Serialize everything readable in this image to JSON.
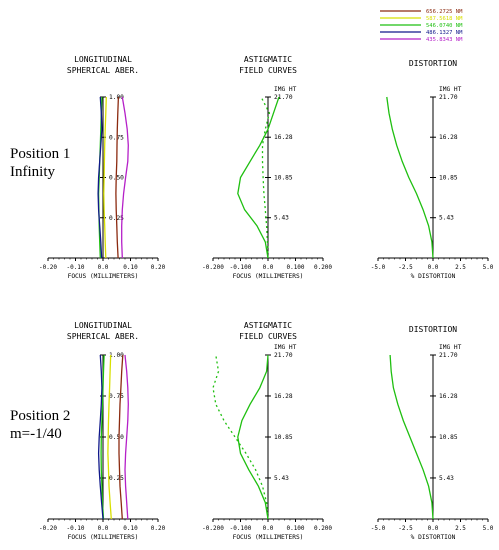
{
  "legend": [
    {
      "label": "656.2725 NM",
      "color": "#8b2a10"
    },
    {
      "label": "587.5618 NM",
      "color": "#d8e000"
    },
    {
      "label": "546.0740 NM",
      "color": "#1fbf10"
    },
    {
      "label": "486.1327 NM",
      "color": "#10188a"
    },
    {
      "label": "435.8343 NM",
      "color": "#b520c8"
    }
  ],
  "rows": [
    {
      "label_line1": "Position 1",
      "label_line2": "Infinity"
    },
    {
      "label_line1": "Position 2",
      "label_line2": "m=-1/40"
    }
  ],
  "chart_data": [
    {
      "type": "line",
      "title": "LONGITUDINAL SPHERICAL ABER.",
      "xlabel": "FOCUS (MILLIMETERS)",
      "xlim": [
        -0.2,
        0.2
      ],
      "ylim": [
        0,
        1
      ],
      "xticks": [
        "-0.20",
        "-0.10",
        "0.0",
        "0.10",
        "0.20"
      ],
      "yticks": [
        "1.00",
        "0.75",
        "0.50",
        "0.25"
      ],
      "yticks_values": [
        1.0,
        0.75,
        0.5,
        0.25
      ],
      "series": [
        {
          "name": "656.2725 NM",
          "color": "#8b2a10",
          "x": [
            0.055,
            0.052,
            0.05,
            0.048,
            0.047,
            0.048,
            0.05,
            0.051,
            0.052,
            0.054,
            0.056
          ],
          "y": [
            0,
            0.1,
            0.2,
            0.3,
            0.4,
            0.5,
            0.6,
            0.7,
            0.8,
            0.9,
            1.0
          ]
        },
        {
          "name": "587.5618 NM",
          "color": "#d8e000",
          "x": [
            0.01,
            0.008,
            0.006,
            0.004,
            0.003,
            0.004,
            0.005,
            0.006,
            0.008,
            0.01,
            0.012
          ],
          "y": [
            0,
            0.1,
            0.2,
            0.3,
            0.4,
            0.5,
            0.6,
            0.7,
            0.8,
            0.9,
            1.0
          ]
        },
        {
          "name": "546.0740 NM",
          "color": "#1fbf10",
          "x": [
            -0.01,
            -0.012,
            -0.014,
            -0.015,
            -0.016,
            -0.014,
            -0.012,
            -0.01,
            -0.008,
            -0.006,
            -0.004
          ],
          "y": [
            0,
            0.1,
            0.2,
            0.3,
            0.4,
            0.5,
            0.6,
            0.7,
            0.8,
            0.9,
            1.0
          ]
        },
        {
          "name": "486.1327 NM",
          "color": "#10188a",
          "x": [
            -0.005,
            -0.008,
            -0.012,
            -0.016,
            -0.018,
            -0.016,
            -0.012,
            -0.008,
            -0.004,
            -0.006,
            -0.01
          ],
          "y": [
            0,
            0.1,
            0.2,
            0.3,
            0.4,
            0.5,
            0.6,
            0.7,
            0.8,
            0.9,
            1.0
          ]
        },
        {
          "name": "435.8343 NM",
          "color": "#b520c8",
          "x": [
            0.07,
            0.068,
            0.068,
            0.07,
            0.075,
            0.082,
            0.09,
            0.092,
            0.088,
            0.08,
            0.07
          ],
          "y": [
            0,
            0.1,
            0.2,
            0.3,
            0.4,
            0.5,
            0.6,
            0.7,
            0.8,
            0.9,
            1.0
          ]
        }
      ]
    },
    {
      "type": "line",
      "title": "ASTIGMATIC FIELD CURVES",
      "ytitle": "IMG HT",
      "xlabel": "FOCUS (MILLIMETERS)",
      "xlim": [
        -0.2,
        0.2
      ],
      "ylim": [
        0,
        21.7
      ],
      "xticks": [
        "-0.200",
        "-0.100",
        "0.0",
        "0.100",
        "0.200"
      ],
      "yticks": [
        "21.70",
        "16.28",
        "10.85",
        "5.43"
      ],
      "yticks_values": [
        21.7,
        16.28,
        10.85,
        5.43
      ],
      "series": [
        {
          "color": "#1fbf10",
          "dash": false,
          "x": [
            0,
            -0.01,
            -0.04,
            -0.085,
            -0.11,
            -0.1,
            -0.065,
            -0.03,
            0,
            0.02,
            0.04
          ],
          "y": [
            0,
            2.17,
            4.34,
            6.51,
            8.68,
            10.85,
            13.02,
            15.19,
            17.36,
            19.53,
            21.7
          ]
        },
        {
          "color": "#1fbf10",
          "dash": true,
          "x": [
            0,
            -0.002,
            -0.005,
            -0.01,
            -0.015,
            -0.018,
            -0.02,
            -0.02,
            -0.01,
            0.005,
            -0.025
          ],
          "y": [
            0,
            2.17,
            4.34,
            6.51,
            8.68,
            10.85,
            13.02,
            15.19,
            17.36,
            19.53,
            21.7
          ]
        }
      ]
    },
    {
      "type": "line",
      "title": "DISTORTION",
      "ytitle": "IMG HT",
      "xlabel": "% DISTORTION",
      "xlim": [
        -5,
        5
      ],
      "ylim": [
        0,
        21.7
      ],
      "xticks": [
        "-5.0",
        "-2.5",
        "0.0",
        "2.5",
        "5.0"
      ],
      "yticks": [
        "21.70",
        "16.28",
        "10.85",
        "5.43"
      ],
      "yticks_values": [
        21.7,
        16.28,
        10.85,
        5.43
      ],
      "series": [
        {
          "color": "#1fbf10",
          "x": [
            0,
            -0.1,
            -0.4,
            -0.9,
            -1.5,
            -2.2,
            -2.8,
            -3.3,
            -3.7,
            -4.0,
            -4.2
          ],
          "y": [
            0,
            2.17,
            4.34,
            6.51,
            8.68,
            10.85,
            13.02,
            15.19,
            17.36,
            19.53,
            21.7
          ]
        }
      ]
    },
    {
      "type": "line",
      "title": "LONGITUDINAL SPHERICAL ABER.",
      "xlabel": "FOCUS (MILLIMETERS)",
      "xlim": [
        -0.2,
        0.2
      ],
      "ylim": [
        0,
        1
      ],
      "xticks": [
        "-0.20",
        "-0.10",
        "0.0",
        "0.10",
        "0.20"
      ],
      "yticks": [
        "1.00",
        "0.75",
        "0.50",
        "0.25"
      ],
      "yticks_values": [
        1.0,
        0.75,
        0.5,
        0.25
      ],
      "series": [
        {
          "name": "656.2725 NM",
          "color": "#8b2a10",
          "x": [
            0.07,
            0.066,
            0.062,
            0.06,
            0.058,
            0.058,
            0.06,
            0.062,
            0.065,
            0.068,
            0.072
          ],
          "y": [
            0,
            0.1,
            0.2,
            0.3,
            0.4,
            0.5,
            0.6,
            0.7,
            0.8,
            0.9,
            1.0
          ]
        },
        {
          "name": "587.5618 NM",
          "color": "#d8e000",
          "x": [
            0.03,
            0.026,
            0.022,
            0.02,
            0.018,
            0.019,
            0.02,
            0.022,
            0.024,
            0.026,
            0.028
          ],
          "y": [
            0,
            0.1,
            0.2,
            0.3,
            0.4,
            0.5,
            0.6,
            0.7,
            0.8,
            0.9,
            1.0
          ]
        },
        {
          "name": "546.0740 NM",
          "color": "#1fbf10",
          "x": [
            0.002,
            -0.002,
            -0.004,
            -0.006,
            -0.007,
            -0.006,
            -0.004,
            -0.002,
            0.0,
            0.002,
            0.004
          ],
          "y": [
            0,
            0.1,
            0.2,
            0.3,
            0.4,
            0.5,
            0.6,
            0.7,
            0.8,
            0.9,
            1.0
          ]
        },
        {
          "name": "486.1327 NM",
          "color": "#10188a",
          "x": [
            0.0,
            -0.005,
            -0.01,
            -0.014,
            -0.016,
            -0.014,
            -0.01,
            -0.006,
            -0.004,
            -0.006,
            -0.01
          ],
          "y": [
            0,
            0.1,
            0.2,
            0.3,
            0.4,
            0.5,
            0.6,
            0.7,
            0.8,
            0.9,
            1.0
          ]
        },
        {
          "name": "435.8343 NM",
          "color": "#b520c8",
          "x": [
            0.09,
            0.086,
            0.082,
            0.08,
            0.082,
            0.086,
            0.09,
            0.092,
            0.09,
            0.086,
            0.08
          ],
          "y": [
            0,
            0.1,
            0.2,
            0.3,
            0.4,
            0.5,
            0.6,
            0.7,
            0.8,
            0.9,
            1.0
          ]
        }
      ]
    },
    {
      "type": "line",
      "title": "ASTIGMATIC FIELD CURVES",
      "ytitle": "IMG HT",
      "xlabel": "FOCUS (MILLIMETERS)",
      "xlim": [
        -0.2,
        0.2
      ],
      "ylim": [
        0,
        21.7
      ],
      "xticks": [
        "-0.200",
        "-0.100",
        "0.0",
        "0.100",
        "0.200"
      ],
      "yticks": [
        "21.70",
        "16.28",
        "10.85",
        "5.43"
      ],
      "yticks_values": [
        21.7,
        16.28,
        10.85,
        5.43
      ],
      "series": [
        {
          "color": "#1fbf10",
          "dash": false,
          "x": [
            0,
            -0.01,
            -0.035,
            -0.07,
            -0.1,
            -0.11,
            -0.095,
            -0.065,
            -0.03,
            -0.005,
            0
          ],
          "y": [
            0,
            2.17,
            4.34,
            6.51,
            8.68,
            10.85,
            13.02,
            15.19,
            17.36,
            19.53,
            21.7
          ]
        },
        {
          "color": "#1fbf10",
          "dash": true,
          "x": [
            0,
            -0.005,
            -0.02,
            -0.045,
            -0.08,
            -0.12,
            -0.16,
            -0.19,
            -0.2,
            -0.18,
            -0.19
          ],
          "y": [
            0,
            2.17,
            4.34,
            6.51,
            8.68,
            10.85,
            13.02,
            15.19,
            17.36,
            19.53,
            21.7
          ]
        }
      ]
    },
    {
      "type": "line",
      "title": "DISTORTION",
      "ytitle": "IMG HT",
      "xlabel": "% DISTORTION",
      "xlim": [
        -5,
        5
      ],
      "ylim": [
        0,
        21.7
      ],
      "xticks": [
        "-5.0",
        "-2.5",
        "0.0",
        "2.5",
        "5.0"
      ],
      "yticks": [
        "21.70",
        "16.28",
        "10.85",
        "5.43"
      ],
      "yticks_values": [
        21.7,
        16.28,
        10.85,
        5.43
      ],
      "series": [
        {
          "color": "#1fbf10",
          "x": [
            0,
            -0.1,
            -0.4,
            -0.9,
            -1.5,
            -2.1,
            -2.7,
            -3.2,
            -3.6,
            -3.8,
            -3.9
          ],
          "y": [
            0,
            2.17,
            4.34,
            6.51,
            8.68,
            10.85,
            13.02,
            15.19,
            17.36,
            19.53,
            21.7
          ]
        }
      ]
    }
  ]
}
